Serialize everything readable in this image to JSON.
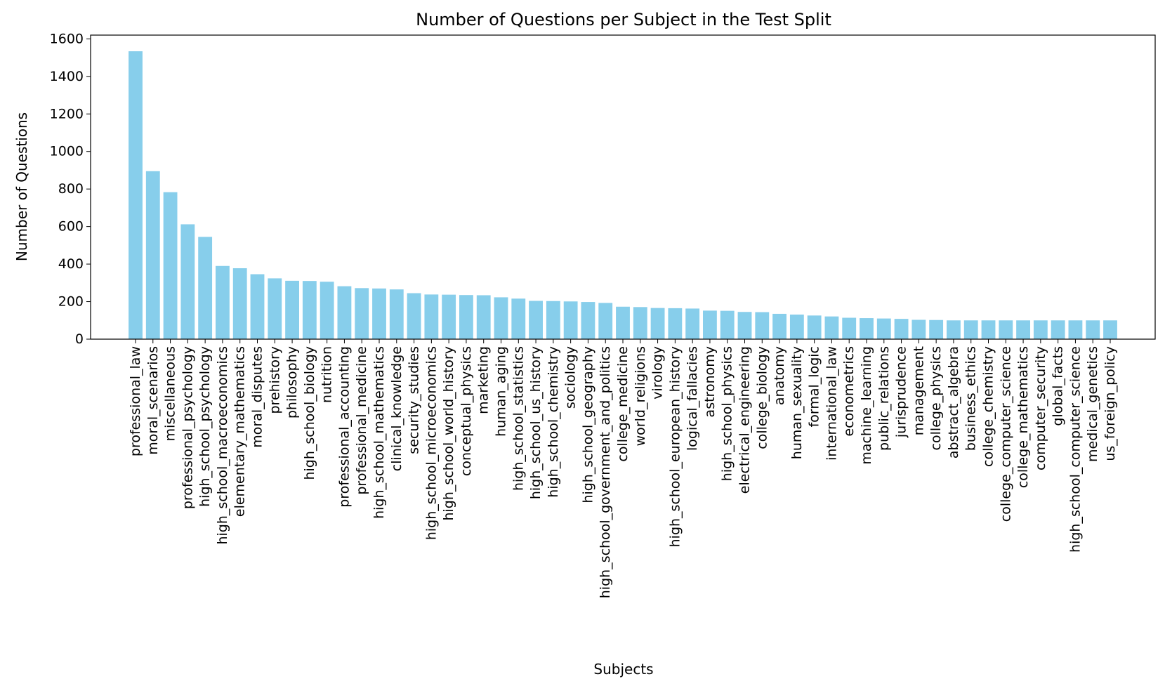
{
  "chart_data": {
    "type": "bar",
    "title": "Number of Questions per Subject in the Test Split",
    "xlabel": "Subjects",
    "ylabel": "Number of Questions",
    "ylim": [
      0,
      1620
    ],
    "yticks": [
      0,
      200,
      400,
      600,
      800,
      1000,
      1200,
      1400,
      1600
    ],
    "grid": false,
    "bar_color": "#87CEEB",
    "categories": [
      "professional_law",
      "moral_scenarios",
      "miscellaneous",
      "professional_psychology",
      "high_school_psychology",
      "high_school_macroeconomics",
      "elementary_mathematics",
      "moral_disputes",
      "prehistory",
      "philosophy",
      "high_school_biology",
      "nutrition",
      "professional_accounting",
      "professional_medicine",
      "high_school_mathematics",
      "clinical_knowledge",
      "security_studies",
      "high_school_microeconomics",
      "high_school_world_history",
      "conceptual_physics",
      "marketing",
      "human_aging",
      "high_school_statistics",
      "high_school_us_history",
      "high_school_chemistry",
      "sociology",
      "high_school_geography",
      "high_school_government_and_politics",
      "college_medicine",
      "world_religions",
      "virology",
      "high_school_european_history",
      "logical_fallacies",
      "astronomy",
      "high_school_physics",
      "electrical_engineering",
      "college_biology",
      "anatomy",
      "human_sexuality",
      "formal_logic",
      "international_law",
      "econometrics",
      "machine_learning",
      "public_relations",
      "jurisprudence",
      "management",
      "college_physics",
      "abstract_algebra",
      "business_ethics",
      "college_chemistry",
      "college_computer_science",
      "college_mathematics",
      "computer_security",
      "global_facts",
      "high_school_computer_science",
      "medical_genetics",
      "us_foreign_policy"
    ],
    "values": [
      1534,
      895,
      783,
      612,
      545,
      390,
      378,
      346,
      324,
      311,
      310,
      306,
      282,
      272,
      270,
      265,
      245,
      238,
      237,
      235,
      234,
      223,
      216,
      204,
      203,
      201,
      198,
      193,
      173,
      171,
      166,
      165,
      163,
      152,
      151,
      145,
      144,
      135,
      131,
      126,
      121,
      114,
      112,
      110,
      108,
      103,
      102,
      100,
      100,
      100,
      100,
      100,
      100,
      100,
      100,
      100,
      100
    ]
  }
}
